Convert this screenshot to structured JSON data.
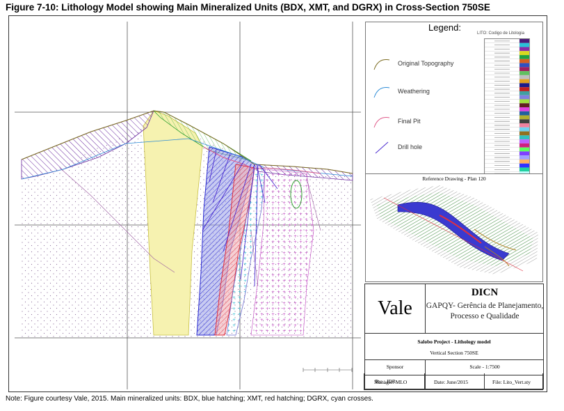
{
  "figure": {
    "title": "Figure 7-10: Lithology Model showing Main Mineralized Units (BDX, XMT, and DGRX) in Cross-Section 750SE",
    "note": "Note:  Figure courtesy Vale, 2015.  Main mineralized units: BDX, blue hatching; XMT, red hatching; DGRX, cyan crosses."
  },
  "legend": {
    "title": "Legend:",
    "items": [
      {
        "label": "Original Topography",
        "color": "#7a6a1f"
      },
      {
        "label": "Weathering",
        "color": "#2a8ad6"
      },
      {
        "label": "Final Pit",
        "color": "#e05a8a"
      },
      {
        "label": "Drill hole",
        "color": "#4a2ad0"
      }
    ],
    "lito_title": "LITO: Codigo de Litologia",
    "lito_colors": [
      "#4a1a7a",
      "#2ac0d8",
      "#8a2aa8",
      "#d8d820",
      "#20a040",
      "#d86020",
      "#3050c0",
      "#a02060",
      "#60c060",
      "#c0c0c0",
      "#e0a020",
      "#1a1a8a",
      "#c02020",
      "#40a0a0",
      "#8080e0",
      "#a0e040",
      "#602020",
      "#e040e0",
      "#2060a0",
      "#b0b030",
      "#404040",
      "#f080a0",
      "#70d0f0",
      "#907020",
      "#30c0c0",
      "#c060ff",
      "#d02080",
      "#60ff60",
      "#8040ff",
      "#a0a0ff",
      "#ffb060",
      "#3030ff",
      "#20d0a0",
      "#c0ffff"
    ]
  },
  "reference": {
    "title": "Reference Drawing - Plan 120"
  },
  "title_block": {
    "logo": "Vale",
    "org": "DICN",
    "dept_line1": "GAPQY- Gerência de Planejamento,",
    "dept_line2": "Processo e Qualidade",
    "project": "Salobo Project - Lithology model",
    "view": "Vertical Section 750SE",
    "sponsor_label": "Sponsor",
    "scale": "Scale - 1:7500",
    "tec": "Tec : JDR",
    "manager": "Manager: MLO",
    "date": "Date: June/2015",
    "file": "File: Lito_Vert.sty"
  },
  "colors": {
    "bdx": "#3a3ad0",
    "xmt": "#e03040",
    "dgrx": "#20b8d0",
    "granite": "#f4f0a0",
    "host": "#b060c0"
  }
}
